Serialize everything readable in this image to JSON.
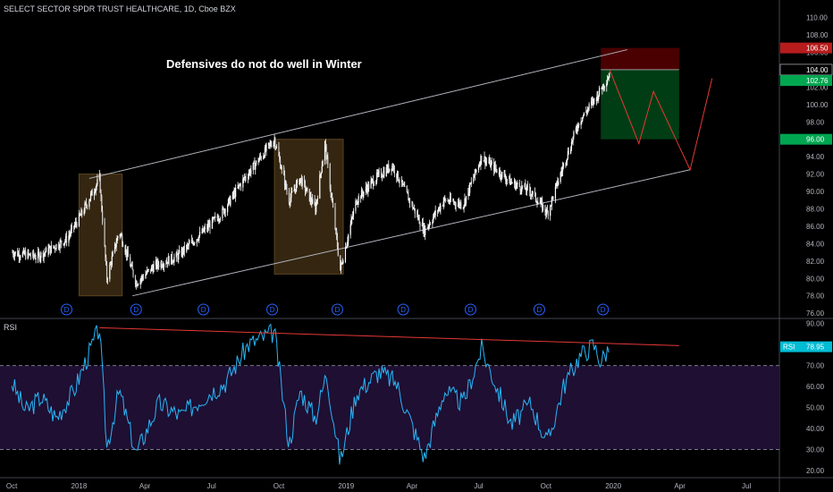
{
  "chart_data": [
    {
      "type": "candlestick",
      "title": "SELECT SECTOR SPDR TRUST HEALTHCARE, 1D, Cboe BZX",
      "annotation": "Defensives do not do well in Winter",
      "ylim": [
        75.5,
        111.5
      ],
      "y_ticks": [
        "110.00",
        "108.00",
        "106.00",
        "104.00",
        "102.00",
        "100.00",
        "98.00",
        "96.00",
        "94.00",
        "92.00",
        "90.00",
        "88.00",
        "86.00",
        "84.00",
        "82.00",
        "80.00",
        "78.00",
        "76.00"
      ],
      "price_labels": [
        {
          "text": "106.50",
          "value": 106.5,
          "color": "#b71c1c"
        },
        {
          "text": "104.00",
          "value": 104.0,
          "color": "#d1d4dc"
        },
        {
          "text": "102.76",
          "value": 102.76,
          "color": "#00a650"
        },
        {
          "text": "96.00",
          "value": 96.0,
          "color": "#00a650"
        }
      ],
      "dividend_markers": [
        "D",
        "D",
        "D",
        "D",
        "D",
        "D",
        "D",
        "D",
        "D"
      ],
      "x_tick_labels": [
        "Oct",
        "2018",
        "Apr",
        "Jul",
        "Oct",
        "2019",
        "Apr",
        "Jul",
        "Oct",
        "2020",
        "Apr",
        "Jul"
      ],
      "price_path": [
        {
          "date": "2017-10-01",
          "value": 83.0
        },
        {
          "date": "2017-11-05",
          "value": 82.5
        },
        {
          "date": "2017-12-15",
          "value": 84.5
        },
        {
          "date": "2018-01-05",
          "value": 87.5
        },
        {
          "date": "2018-01-29",
          "value": 91.5
        },
        {
          "date": "2018-02-08",
          "value": 80.0
        },
        {
          "date": "2018-02-25",
          "value": 85.5
        },
        {
          "date": "2018-03-20",
          "value": 79.5
        },
        {
          "date": "2018-04-15",
          "value": 81.5
        },
        {
          "date": "2018-05-15",
          "value": 82.5
        },
        {
          "date": "2018-06-15",
          "value": 85.0
        },
        {
          "date": "2018-07-15",
          "value": 87.5
        },
        {
          "date": "2018-08-15",
          "value": 91.5
        },
        {
          "date": "2018-09-25",
          "value": 96.0
        },
        {
          "date": "2018-10-15",
          "value": 89.0
        },
        {
          "date": "2018-10-30",
          "value": 91.5
        },
        {
          "date": "2018-11-20",
          "value": 88.0
        },
        {
          "date": "2018-12-03",
          "value": 95.5
        },
        {
          "date": "2018-12-24",
          "value": 81.0
        },
        {
          "date": "2019-01-15",
          "value": 89.0
        },
        {
          "date": "2019-02-10",
          "value": 91.5
        },
        {
          "date": "2019-03-05",
          "value": 93.0
        },
        {
          "date": "2019-04-18",
          "value": 85.5
        },
        {
          "date": "2019-05-15",
          "value": 89.0
        },
        {
          "date": "2019-06-10",
          "value": 88.5
        },
        {
          "date": "2019-07-05",
          "value": 94.0
        },
        {
          "date": "2019-08-15",
          "value": 91.0
        },
        {
          "date": "2019-09-10",
          "value": 90.0
        },
        {
          "date": "2019-10-03",
          "value": 87.5
        },
        {
          "date": "2019-10-25",
          "value": 93.0
        },
        {
          "date": "2019-11-15",
          "value": 98.0
        },
        {
          "date": "2019-12-10",
          "value": 101.0
        },
        {
          "date": "2019-12-27",
          "value": 103.5
        }
      ],
      "channel": {
        "upper": [
          {
            "date": "2018-01-15",
            "value": 91.5
          },
          {
            "date": "2020-01-20",
            "value": 106.3
          }
        ],
        "lower": [
          {
            "date": "2018-03-15",
            "value": 78.0
          },
          {
            "date": "2020-04-15",
            "value": 92.5
          }
        ]
      },
      "highlight_zones": [
        {
          "from": "2018-01-01",
          "to": "2018-03-01",
          "low": 78.0,
          "high": 92.0
        },
        {
          "from": "2018-09-25",
          "to": "2018-12-28",
          "low": 80.5,
          "high": 96.0
        }
      ],
      "position_tool": {
        "from": "2019-12-15",
        "to": "2020-03-31",
        "entry": 104.0,
        "stop": 106.5,
        "target": 96.0
      },
      "projection": [
        {
          "date": "2019-12-27",
          "value": 104.0
        },
        {
          "date": "2020-01-15",
          "value": 100.0
        },
        {
          "date": "2020-02-05",
          "value": 95.5
        },
        {
          "date": "2020-02-25",
          "value": 101.5
        },
        {
          "date": "2020-04-15",
          "value": 92.5
        },
        {
          "date": "2020-05-15",
          "value": 103.0
        }
      ],
      "colors": {
        "up": "#ffffff",
        "down": "#ffffff",
        "channel": "#b2b5be",
        "zone": "#3e2d14",
        "stop_zone": "#4a0000",
        "target_zone": "#003d14",
        "projection": "#e53935"
      }
    },
    {
      "type": "line",
      "title": "RSI",
      "current_label": "RSI",
      "current_value": "78.95",
      "ylim": [
        17,
        92
      ],
      "y_ticks": [
        "90.00",
        "80.00",
        "70.00",
        "60.00",
        "50.00",
        "40.00",
        "30.00",
        "20.00"
      ],
      "overbought": 70,
      "oversold": 30,
      "series": [
        {
          "values": [
            [
              "2017-10-01",
              62
            ],
            [
              "2017-10-20",
              48
            ],
            [
              "2017-11-10",
              55
            ],
            [
              "2017-12-01",
              45
            ],
            [
              "2017-12-25",
              58
            ],
            [
              "2018-01-10",
              72
            ],
            [
              "2018-01-29",
              88
            ],
            [
              "2018-02-08",
              31
            ],
            [
              "2018-02-25",
              58
            ],
            [
              "2018-03-20",
              28
            ],
            [
              "2018-04-20",
              52
            ],
            [
              "2018-05-20",
              46
            ],
            [
              "2018-06-20",
              55
            ],
            [
              "2018-07-20",
              62
            ],
            [
              "2018-08-20",
              80
            ],
            [
              "2018-09-25",
              86
            ],
            [
              "2018-10-15",
              32
            ],
            [
              "2018-10-30",
              58
            ],
            [
              "2018-11-20",
              45
            ],
            [
              "2018-12-05",
              66
            ],
            [
              "2018-12-24",
              24
            ],
            [
              "2019-01-15",
              57
            ],
            [
              "2019-02-15",
              67
            ],
            [
              "2019-03-10",
              62
            ],
            [
              "2019-04-18",
              26
            ],
            [
              "2019-05-15",
              58
            ],
            [
              "2019-06-10",
              52
            ],
            [
              "2019-07-05",
              78
            ],
            [
              "2019-08-15",
              42
            ],
            [
              "2019-09-10",
              52
            ],
            [
              "2019-10-03",
              33
            ],
            [
              "2019-10-25",
              60
            ],
            [
              "2019-11-15",
              74
            ],
            [
              "2019-12-05",
              80
            ],
            [
              "2019-12-15",
              72
            ],
            [
              "2019-12-27",
              79
            ]
          ]
        }
      ],
      "trendline": [
        {
          "date": "2018-01-29",
          "value": 88
        },
        {
          "date": "2020-03-31",
          "value": 79.5
        }
      ],
      "colors": {
        "line": "#29b6f6",
        "zone": "#1e0f33",
        "trendline": "#e53935",
        "label_bg": "#00bcd4"
      }
    }
  ]
}
